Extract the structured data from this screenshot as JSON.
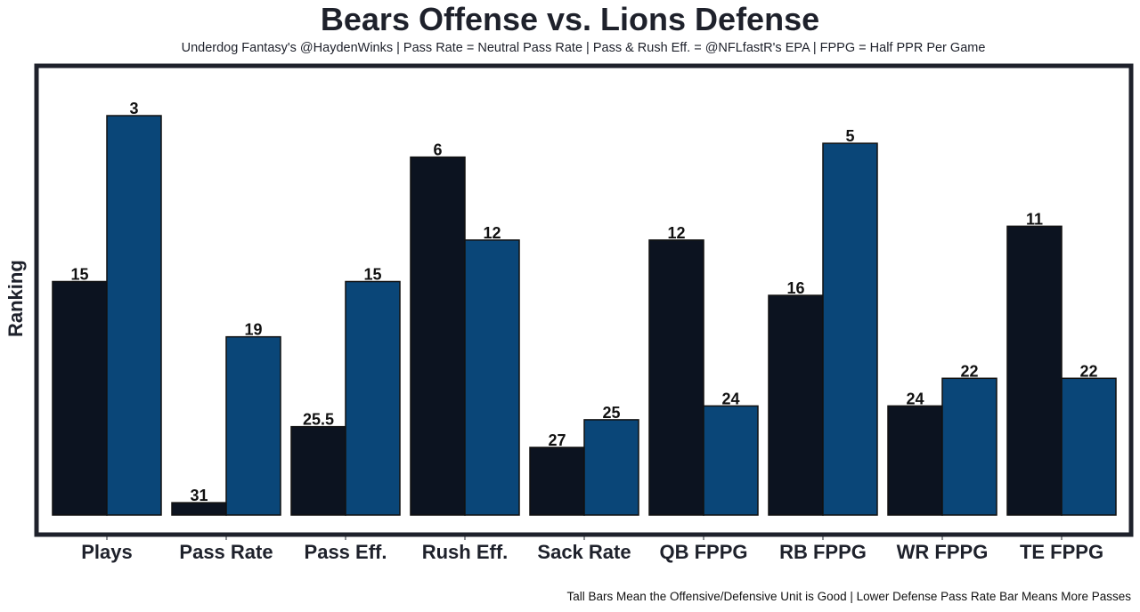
{
  "chart_data": {
    "type": "bar",
    "title": "Bears Offense vs. Lions Defense",
    "subtitle": "Underdog Fantasy's @HaydenWinks | Pass Rate = Neutral Pass Rate | Pass & Rush Eff. = @NFLfastR's EPA | FPPG = Half PPR Per Game",
    "footer": "Tall Bars Mean the Offensive/Defensive Unit is Good | Lower Defense Pass Rate Bar Means More Passes",
    "xlabel": "",
    "ylabel": "Ranking",
    "categories": [
      "Plays",
      "Pass Rate",
      "Pass Eff.",
      "Rush Eff.",
      "Sack Rate",
      "QB FPPG",
      "RB FPPG",
      "WR FPPG",
      "TE FPPG"
    ],
    "series": [
      {
        "name": "Bears Offense",
        "color": "#0c1320",
        "values": [
          15,
          31,
          25.5,
          6,
          27,
          12,
          16,
          24,
          11
        ]
      },
      {
        "name": "Lions Defense",
        "color": "#0a4678",
        "values": [
          3,
          19,
          15,
          12,
          25,
          24,
          5,
          22,
          22
        ]
      }
    ],
    "value_note": "Bar height inversely proportional to ranking (rank 1 tallest)",
    "rank_range": [
      1,
      32
    ],
    "grid": false,
    "legend": "none"
  }
}
